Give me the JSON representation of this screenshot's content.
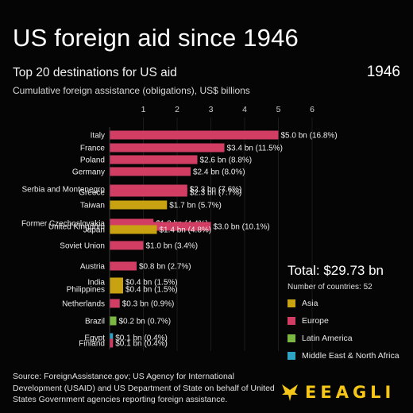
{
  "header": {
    "title": "US foreign aid since 1946",
    "subtitle": "Top 20 destinations for US aid",
    "axis_description": "Cumulative foreign assistance (obligations), US$ billions",
    "year": "1946"
  },
  "summary": {
    "total": "Total: $29.73 bn",
    "countries": "Number of countries: 52"
  },
  "colors": {
    "Asia": "#c9a212",
    "Europe": "#d23d63",
    "Latin America": "#7ab842",
    "Middle East & North Africa": "#2fa3c4",
    "background": "#050505"
  },
  "legend": [
    "Asia",
    "Europe",
    "Latin America",
    "Middle East & North Africa"
  ],
  "source": "Source: ForeignAssistance.gov; US Agency for International Development (USAID) and US Department of State on behalf of United States Government agencies reporting foreign assistance.",
  "logo": {
    "text": "EEAGLI"
  },
  "chart_data": {
    "type": "bar",
    "orientation": "horizontal",
    "xlim": [
      0,
      6.2
    ],
    "ticks": [
      "1",
      "2",
      "3",
      "4",
      "5",
      "6"
    ],
    "tick_values": [
      1,
      2,
      3,
      4,
      5,
      6
    ],
    "unit": "US$ billions",
    "rows": [
      {
        "country": "Italy",
        "value": 5.0,
        "label": "$5.0 bn (16.8%)",
        "region": "Europe"
      },
      {
        "country": "France",
        "value": 3.4,
        "label": "$3.4 bn (11.5%)",
        "region": "Europe"
      },
      {
        "country": "Poland",
        "value": 2.6,
        "label": "$2.6 bn (8.8%)",
        "region": "Europe"
      },
      {
        "country": "Germany",
        "value": 2.4,
        "label": "$2.4 bn (8.0%)",
        "region": "Europe"
      },
      {
        "country": "Serbia and Montenegro",
        "value": 2.3,
        "label": "$2.3 bn (7.6%)",
        "region": "Europe"
      },
      {
        "country": "Greece",
        "value": 2.3,
        "label": "$2.3 bn (7.7%)",
        "region": "Europe"
      },
      {
        "country": "Taiwan",
        "value": 1.7,
        "label": "$1.7 bn (5.7%)",
        "region": "Asia"
      },
      {
        "country": "Former Czechoslovakia",
        "value": 1.3,
        "label": "$1.3 bn (4.4%)",
        "region": "Europe"
      },
      {
        "country": "United Kingdom",
        "value": 3.0,
        "label": "$3.0 bn (10.1%)",
        "region": "Europe"
      },
      {
        "country": "Japan",
        "value": 1.4,
        "label": "$1.4 bn (4.8%)",
        "region": "Asia"
      },
      {
        "country": "Soviet Union",
        "value": 1.0,
        "label": "$1.0 bn (3.4%)",
        "region": "Europe"
      },
      {
        "country": "Austria",
        "value": 0.8,
        "label": "$0.8 bn (2.7%)",
        "region": "Europe"
      },
      {
        "country": "India",
        "value": 0.4,
        "label": "$0.4 bn (1.5%)",
        "region": "Asia"
      },
      {
        "country": "Philippines",
        "value": 0.4,
        "label": "$0.4 bn (1.5%)",
        "region": "Asia"
      },
      {
        "country": "Netherlands",
        "value": 0.3,
        "label": "$0.3 bn (0.9%)",
        "region": "Europe"
      },
      {
        "country": "Brazil",
        "value": 0.2,
        "label": "$0.2 bn (0.7%)",
        "region": "Latin America"
      },
      {
        "country": "Egypt",
        "value": 0.1,
        "label": "$0.1 bn (0.4%)",
        "region": "Middle East & North Africa"
      },
      {
        "country": "Finland",
        "value": 0.1,
        "label": "$0.1 bn (0.4%)",
        "region": "Europe"
      }
    ]
  }
}
